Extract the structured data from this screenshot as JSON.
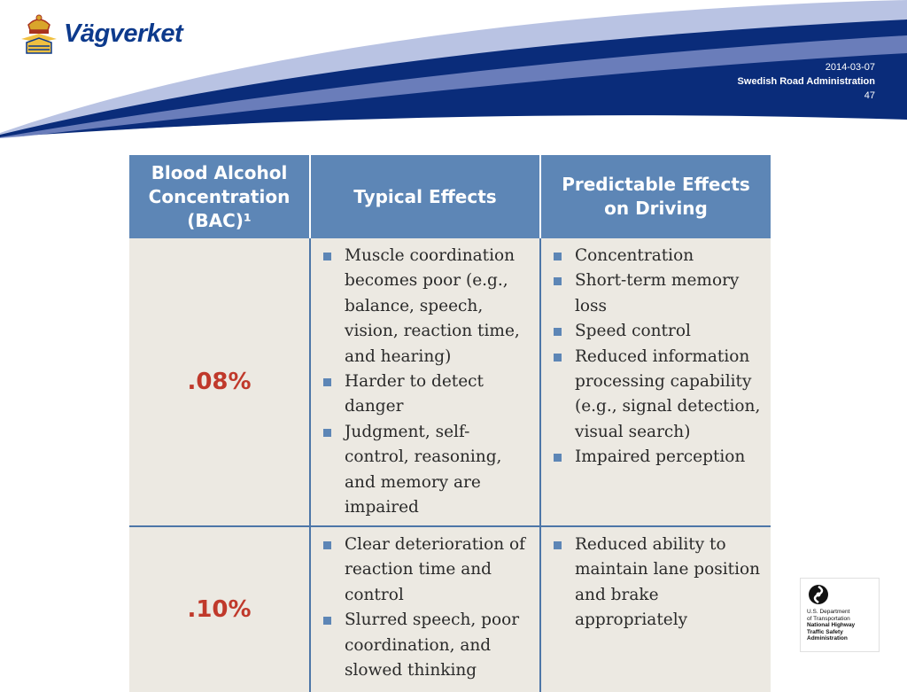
{
  "header": {
    "brand": "Vägverket",
    "date": "2014-03-07",
    "organization": "Swedish Road Administration",
    "page_number": "47",
    "colors": {
      "brand_blue": "#0d3a8c",
      "band_dark": "#0a2c7a",
      "band_light": "#7b8cc6"
    }
  },
  "table": {
    "headers": [
      "Blood Alcohol Concentration (BAC)¹",
      "Typical Effects",
      "Predictable Effects on Driving"
    ],
    "rows": [
      {
        "bac": ".08%",
        "typical": [
          "Muscle coordination becomes poor (e.g., balance, speech, vision, reaction time, and hearing)",
          "Harder to detect danger",
          "Judgment, self-control, reasoning, and memory are impaired"
        ],
        "driving": [
          "Concentration",
          "Short-term memory loss",
          "Speed control",
          "Reduced information processing capability (e.g., signal detection, visual search)",
          "Impaired perception"
        ]
      },
      {
        "bac": ".10%",
        "typical": [
          "Clear deterioration of reaction time and control",
          "Slurred speech, poor coordination, and slowed thinking"
        ],
        "driving": [
          "Reduced ability to maintain lane position and brake appropriately"
        ]
      }
    ],
    "colors": {
      "header_bg": "#5d86b6",
      "bac_value": "#c0392b",
      "cell_bg": "#ece9e2"
    }
  },
  "nhtsa_logo": {
    "line1": "U.S. Department",
    "line2": "of Transportation",
    "line3": "National Highway",
    "line4": "Traffic Safety",
    "line5": "Administration"
  }
}
